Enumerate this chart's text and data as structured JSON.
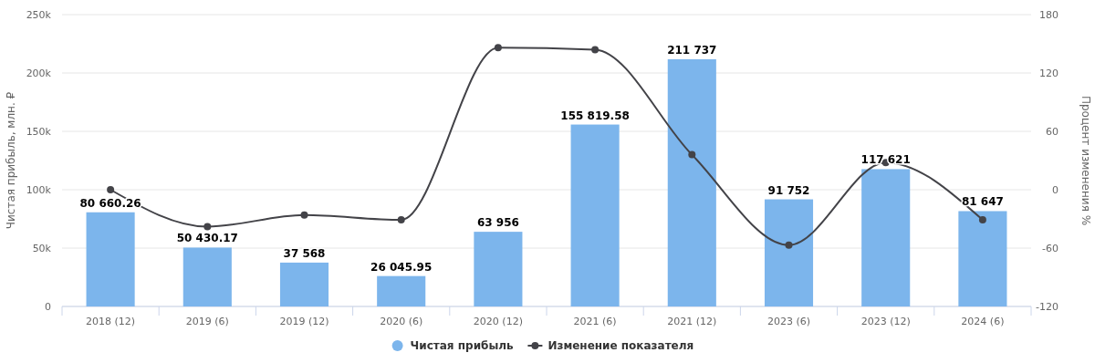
{
  "chart_data": {
    "type": "bar",
    "ylabel": "Чистая прибыль, млн. ₽",
    "y2label": "Процент изменения %",
    "categories": [
      "2018 (12)",
      "2019 (6)",
      "2019 (12)",
      "2020 (6)",
      "2020 (12)",
      "2021 (6)",
      "2021 (12)",
      "2023 (6)",
      "2023 (12)",
      "2024 (6)"
    ],
    "series": [
      {
        "name": "Чистая прибыль",
        "color": "#7cb5ec",
        "values": [
          80660.26,
          50430.17,
          37568,
          26045.95,
          63956,
          155819.58,
          211737,
          91752,
          117621,
          81647
        ],
        "value_labels": [
          "80 660.26",
          "50 430.17",
          "37 568",
          "26 045.95",
          "63 956",
          "155 819.58",
          "211 737",
          "91 752",
          "117 621",
          "81 647"
        ]
      },
      {
        "name": "Изменение показателя",
        "type": "line",
        "axis": "y2",
        "color": "#434348",
        "marker": "circle",
        "values": [
          0,
          -38,
          -26,
          -31,
          146,
          144,
          36,
          -57,
          28,
          -31
        ]
      }
    ],
    "ylim": [
      0,
      250000
    ],
    "yticks": [
      {
        "value": 0,
        "label": "0"
      },
      {
        "value": 50000,
        "label": "50k"
      },
      {
        "value": 100000,
        "label": "100k"
      },
      {
        "value": 150000,
        "label": "150k"
      },
      {
        "value": 200000,
        "label": "200k"
      },
      {
        "value": 250000,
        "label": "250k"
      }
    ],
    "y2lim": [
      -120,
      180
    ],
    "y2ticks": [
      -120,
      -60,
      0,
      60,
      120,
      180
    ],
    "grid": "y",
    "legend": "bottom"
  }
}
